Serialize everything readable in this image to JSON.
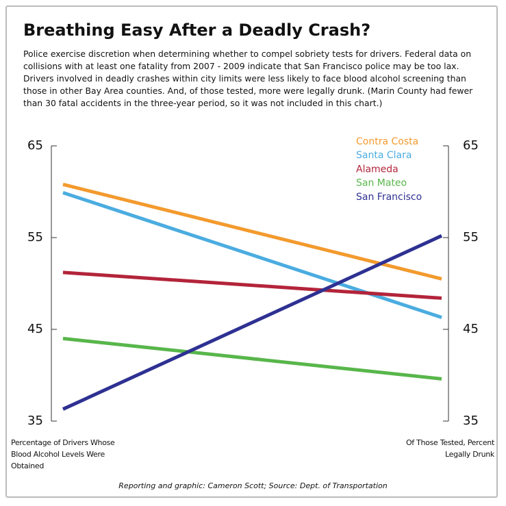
{
  "chart_data": {
    "type": "slope",
    "title": "Breathing Easy After a Deadly Crash?",
    "subtitle": "Police exercise discretion when determining whether to compel sobriety tests for drivers. Federal data on collisions with at least one fatality from 2007 - 2009 indicate that San Francisco police may be too lax. Drivers involved in deadly crashes within city limits were less likely to face blood alcohol screening than those in other Bay Area counties. And, of those tested, more were legally drunk. (Marin County had fewer than 30 fatal accidents in the three-year period, so it was not included in this chart.)",
    "categories": [
      "Percentage of Drivers Whose Blood Alcohol Levels Were Obtained",
      "Of Those Tested, Percent Legally Drunk"
    ],
    "series": [
      {
        "name": "Contra Costa",
        "color": "#f39a2e",
        "values": [
          60.8,
          50.5
        ]
      },
      {
        "name": "Santa Clara",
        "color": "#4bace0",
        "values": [
          59.9,
          46.3
        ]
      },
      {
        "name": "Alameda",
        "color": "#b3243a",
        "values": [
          51.2,
          48.4
        ]
      },
      {
        "name": "San Mateo",
        "color": "#58b64b",
        "values": [
          44.0,
          39.6
        ]
      },
      {
        "name": "San Francisco",
        "color": "#2e3192",
        "values": [
          36.3,
          55.2
        ]
      }
    ],
    "ylim": [
      35,
      65
    ],
    "yticks": [
      35,
      45,
      55,
      65
    ],
    "y2lim": [
      35,
      65
    ],
    "y2ticks": [
      35,
      45,
      55,
      65
    ],
    "grid": false,
    "legend": "top-right",
    "footer": "Reporting and graphic: Cameron Scott; Source: Dept. of Transportation"
  }
}
